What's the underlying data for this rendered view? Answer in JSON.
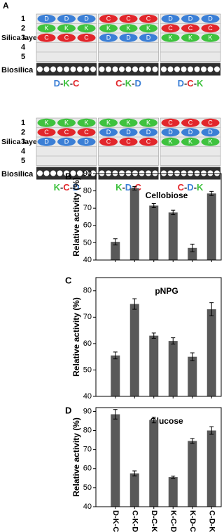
{
  "panel_a": {
    "label": "A",
    "letter_colors": {
      "D": "#3b7fd6",
      "K": "#3ec23e",
      "C": "#e2262b"
    },
    "rows": [
      {
        "axis_title": "Silica layer",
        "layer_numbers": [
          "1",
          "2",
          "3",
          "4",
          "5"
        ],
        "substrate": "Biosilica",
        "diagrams": [
          {
            "layers": [
              [
                "D",
                "D",
                "D"
              ],
              [
                "K",
                "K",
                "K"
              ],
              [
                "C",
                "C",
                "C"
              ]
            ],
            "caption": "D-K-C"
          },
          {
            "layers": [
              [
                "C",
                "C",
                "C"
              ],
              [
                "K",
                "K",
                "K"
              ],
              [
                "D",
                "D",
                "D"
              ]
            ],
            "caption": "C-K-D"
          },
          {
            "layers": [
              [
                "D",
                "D",
                "D"
              ],
              [
                "C",
                "C",
                "C"
              ],
              [
                "K",
                "K",
                "K"
              ]
            ],
            "caption": "D-C-K"
          }
        ]
      },
      {
        "axis_title": "Silica layer",
        "layer_numbers": [
          "1",
          "2",
          "3",
          "4",
          "5"
        ],
        "substrate": "Biosilica",
        "diagrams": [
          {
            "layers": [
              [
                "K",
                "K",
                "K"
              ],
              [
                "C",
                "C",
                "C"
              ],
              [
                "D",
                "D",
                "D"
              ]
            ],
            "caption": "K-C-D"
          },
          {
            "layers": [
              [
                "K",
                "K",
                "K"
              ],
              [
                "D",
                "D",
                "D"
              ],
              [
                "C",
                "C",
                "C"
              ]
            ],
            "caption": "K-D-C"
          },
          {
            "layers": [
              [
                "C",
                "C",
                "C"
              ],
              [
                "D",
                "D",
                "D"
              ],
              [
                "K",
                "K",
                "K"
              ]
            ],
            "caption": "C-D-K"
          }
        ]
      }
    ]
  },
  "chart_data": [
    {
      "type": "bar",
      "panel_label": "B",
      "title": "Cellobiose",
      "y_label": "Relative activity (%)",
      "categories": [
        null,
        null,
        null,
        null,
        null,
        null
      ],
      "values": [
        50.5,
        81.5,
        71.5,
        67.5,
        47,
        78.5
      ],
      "errors": [
        1.8,
        1,
        1.2,
        1.3,
        2.2,
        1.2
      ],
      "color": "#595959",
      "ylim": [
        40,
        90
      ],
      "yticks": [
        40,
        50,
        60,
        70,
        80,
        90
      ]
    },
    {
      "type": "bar",
      "panel_label": "C",
      "title": "pNPG",
      "y_label": "Relative activity (%)",
      "categories": [
        null,
        null,
        null,
        null,
        null,
        null
      ],
      "values": [
        55.5,
        75,
        63,
        61,
        55,
        73
      ],
      "errors": [
        1.3,
        2,
        1,
        1.2,
        1.5,
        2.5
      ],
      "color": "#595959",
      "ylim": [
        40,
        85
      ],
      "yticks": [
        40,
        50,
        60,
        70,
        80
      ]
    },
    {
      "type": "bar",
      "panel_label": "D",
      "title": "Glucose",
      "y_label": "Relative activity (%)",
      "categories": [
        "D-K-C",
        "C-K-D",
        "D-C-K",
        "K-C-D",
        "K-D-C",
        "C-D-K"
      ],
      "values": [
        88.5,
        57.5,
        85.5,
        55.5,
        74.5,
        80
      ],
      "errors": [
        2.5,
        1.3,
        1.5,
        0.6,
        1.3,
        2
      ],
      "color": "#595959",
      "ylim": [
        40,
        92
      ],
      "yticks": [
        40,
        50,
        60,
        70,
        80,
        90
      ]
    }
  ]
}
